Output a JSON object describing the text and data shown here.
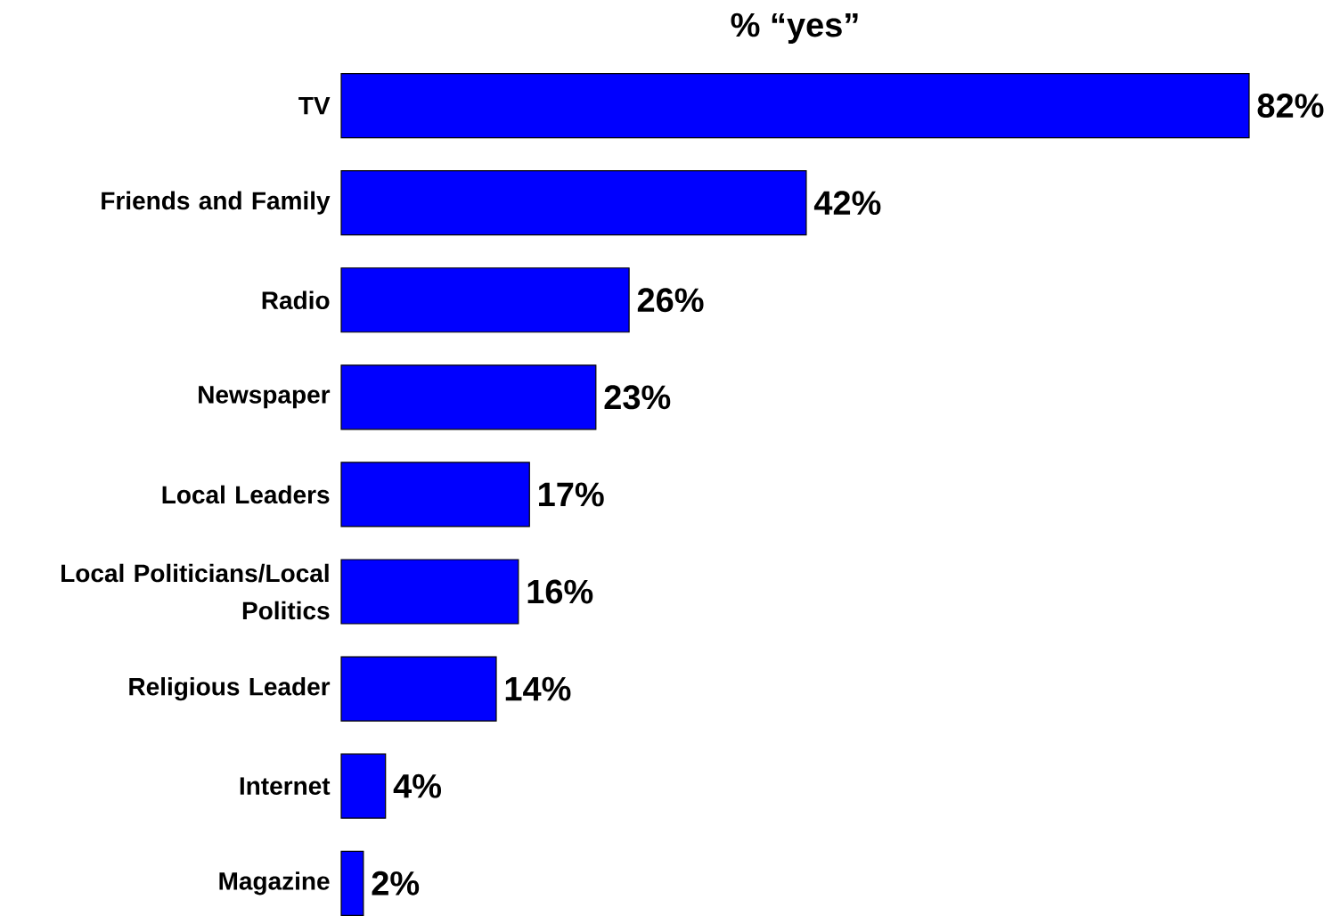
{
  "chart_data": {
    "type": "bar",
    "orientation": "horizontal",
    "title": "% “yes”",
    "categories": [
      "TV",
      "Friends and Family",
      "Radio",
      "Newspaper",
      "Local Leaders",
      "Local Politicians/Local Politics",
      "Religious Leader",
      "Internet",
      "Magazine"
    ],
    "values": [
      82,
      42,
      26,
      23,
      17,
      16,
      14,
      4,
      2
    ],
    "value_labels": [
      "82%",
      "42%",
      "26%",
      "23%",
      "17%",
      "16%",
      "14%",
      "4%",
      "2%"
    ],
    "color": "#0000ff"
  }
}
